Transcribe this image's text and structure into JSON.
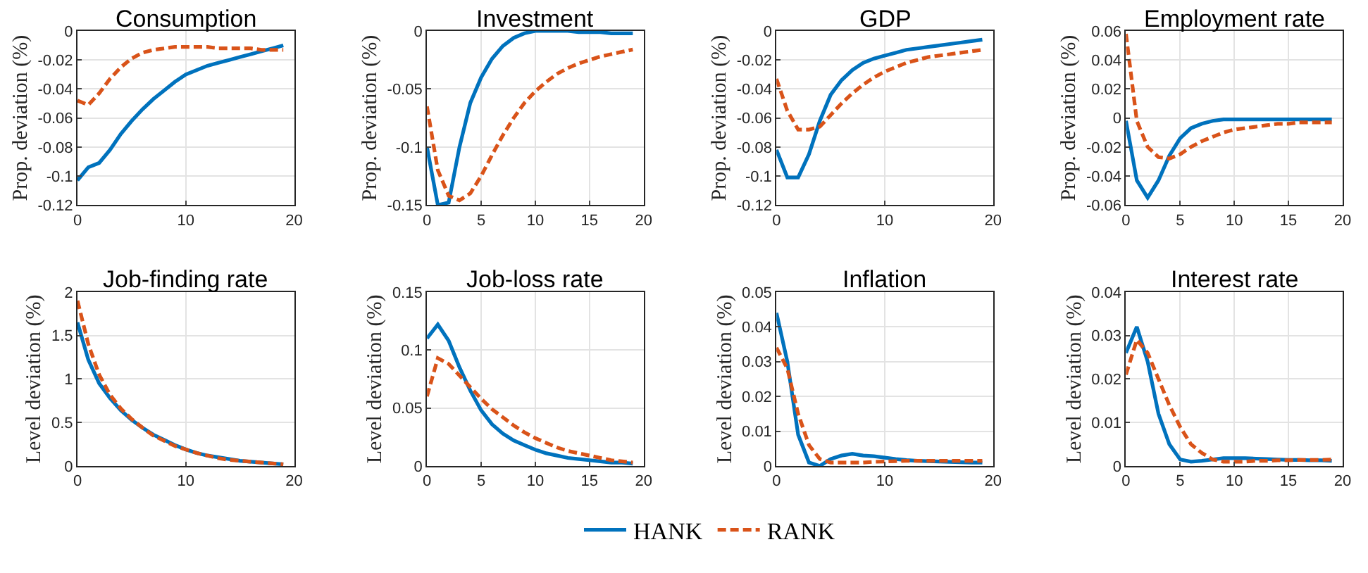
{
  "chart_data": [
    {
      "type": "line",
      "title": "Consumption",
      "ylabel": "Prop. deviation (%)",
      "x": [
        0,
        1,
        2,
        3,
        4,
        5,
        6,
        7,
        8,
        9,
        10,
        11,
        12,
        13,
        14,
        15,
        16,
        17,
        18,
        19
      ],
      "xlim": [
        0,
        20
      ],
      "xticks": [
        0,
        10,
        20
      ],
      "ylim": [
        -0.12,
        0
      ],
      "yticks": [
        -0.12,
        -0.1,
        -0.08,
        -0.06,
        -0.04,
        -0.02,
        0
      ],
      "grid": true,
      "legend": "bottom",
      "marker": "none",
      "series": [
        {
          "name": "HANK",
          "color": "#0072bd",
          "line_style": "solid",
          "values": [
            -0.103,
            -0.094,
            -0.091,
            -0.082,
            -0.071,
            -0.062,
            -0.054,
            -0.047,
            -0.041,
            -0.035,
            -0.03,
            -0.027,
            -0.024,
            -0.022,
            -0.02,
            -0.018,
            -0.016,
            -0.014,
            -0.012,
            -0.01
          ]
        },
        {
          "name": "RANK",
          "color": "#d95319",
          "line_style": "dashed",
          "values": [
            -0.048,
            -0.051,
            -0.043,
            -0.033,
            -0.025,
            -0.019,
            -0.015,
            -0.013,
            -0.012,
            -0.011,
            -0.011,
            -0.011,
            -0.011,
            -0.012,
            -0.012,
            -0.012,
            -0.012,
            -0.013,
            -0.013,
            -0.013
          ]
        }
      ]
    },
    {
      "type": "line",
      "title": "Investment",
      "ylabel": "Prop. deviation (%)",
      "x": [
        0,
        1,
        2,
        3,
        4,
        5,
        6,
        7,
        8,
        9,
        10,
        11,
        12,
        13,
        14,
        15,
        16,
        17,
        18,
        19
      ],
      "xlim": [
        0,
        20
      ],
      "xticks": [
        0,
        5,
        10,
        15,
        20
      ],
      "ylim": [
        -0.15,
        0
      ],
      "yticks": [
        -0.15,
        -0.1,
        -0.05,
        0
      ],
      "grid": true,
      "marker": "none",
      "series": [
        {
          "color": "#0072bd",
          "line_style": "solid",
          "values": [
            -0.1,
            -0.15,
            -0.148,
            -0.1,
            -0.062,
            -0.04,
            -0.024,
            -0.013,
            -0.006,
            -0.002,
            0,
            0,
            0,
            0,
            -0.001,
            -0.001,
            -0.001,
            -0.002,
            -0.002,
            -0.002
          ]
        },
        {
          "color": "#d95319",
          "line_style": "dashed",
          "values": [
            -0.065,
            -0.12,
            -0.142,
            -0.146,
            -0.14,
            -0.125,
            -0.107,
            -0.09,
            -0.075,
            -0.062,
            -0.052,
            -0.044,
            -0.037,
            -0.032,
            -0.028,
            -0.025,
            -0.022,
            -0.02,
            -0.018,
            -0.016
          ]
        }
      ]
    },
    {
      "type": "line",
      "title": "GDP",
      "ylabel": "Prop. deviation (%)",
      "x": [
        0,
        1,
        2,
        3,
        4,
        5,
        6,
        7,
        8,
        9,
        10,
        11,
        12,
        13,
        14,
        15,
        16,
        17,
        18,
        19
      ],
      "xlim": [
        0,
        20
      ],
      "xticks": [
        0,
        10,
        20
      ],
      "ylim": [
        -0.12,
        0
      ],
      "yticks": [
        -0.12,
        -0.1,
        -0.08,
        -0.06,
        -0.04,
        -0.02,
        0
      ],
      "grid": true,
      "marker": "none",
      "series": [
        {
          "color": "#0072bd",
          "line_style": "solid",
          "values": [
            -0.082,
            -0.101,
            -0.101,
            -0.085,
            -0.062,
            -0.044,
            -0.034,
            -0.027,
            -0.022,
            -0.019,
            -0.017,
            -0.015,
            -0.013,
            -0.012,
            -0.011,
            -0.01,
            -0.009,
            -0.008,
            -0.007,
            -0.006
          ]
        },
        {
          "color": "#d95319",
          "line_style": "dashed",
          "values": [
            -0.033,
            -0.055,
            -0.068,
            -0.068,
            -0.066,
            -0.058,
            -0.05,
            -0.043,
            -0.037,
            -0.032,
            -0.028,
            -0.025,
            -0.022,
            -0.02,
            -0.018,
            -0.017,
            -0.016,
            -0.015,
            -0.014,
            -0.013
          ]
        }
      ]
    },
    {
      "type": "line",
      "title": "Employment rate",
      "ylabel": "Prop. deviation (%)",
      "x": [
        0,
        1,
        2,
        3,
        4,
        5,
        6,
        7,
        8,
        9,
        10,
        11,
        12,
        13,
        14,
        15,
        16,
        17,
        18,
        19
      ],
      "xlim": [
        0,
        20
      ],
      "xticks": [
        0,
        5,
        10,
        15,
        20
      ],
      "ylim": [
        -0.06,
        0.06
      ],
      "yticks": [
        -0.06,
        -0.04,
        -0.02,
        0,
        0.02,
        0.04,
        0.06
      ],
      "grid": true,
      "marker": "none",
      "series": [
        {
          "color": "#0072bd",
          "line_style": "solid",
          "values": [
            -0.002,
            -0.043,
            -0.055,
            -0.043,
            -0.026,
            -0.014,
            -0.007,
            -0.004,
            -0.002,
            -0.001,
            -0.001,
            -0.001,
            -0.001,
            -0.001,
            -0.001,
            -0.001,
            -0.001,
            -0.001,
            -0.001,
            -0.001
          ]
        },
        {
          "color": "#d95319",
          "line_style": "dashed",
          "values": [
            0.058,
            -0.002,
            -0.02,
            -0.027,
            -0.028,
            -0.025,
            -0.02,
            -0.016,
            -0.013,
            -0.01,
            -0.008,
            -0.007,
            -0.006,
            -0.005,
            -0.004,
            -0.004,
            -0.003,
            -0.003,
            -0.003,
            -0.003
          ]
        }
      ]
    },
    {
      "type": "line",
      "title": "Job-finding rate",
      "ylabel": "Level deviation (%)",
      "x": [
        0,
        1,
        2,
        3,
        4,
        5,
        6,
        7,
        8,
        9,
        10,
        11,
        12,
        13,
        14,
        15,
        16,
        17,
        18,
        19
      ],
      "xlim": [
        0,
        20
      ],
      "xticks": [
        0,
        10,
        20
      ],
      "ylim": [
        0,
        2
      ],
      "yticks": [
        0,
        0.5,
        1,
        1.5,
        2
      ],
      "grid": true,
      "marker": "none",
      "series": [
        {
          "color": "#0072bd",
          "line_style": "solid",
          "values": [
            1.65,
            1.22,
            0.95,
            0.78,
            0.64,
            0.53,
            0.44,
            0.36,
            0.3,
            0.24,
            0.19,
            0.15,
            0.12,
            0.1,
            0.08,
            0.06,
            0.05,
            0.04,
            0.03,
            0.02
          ]
        },
        {
          "color": "#d95319",
          "line_style": "dashed",
          "values": [
            1.9,
            1.4,
            1.05,
            0.82,
            0.66,
            0.54,
            0.44,
            0.35,
            0.29,
            0.23,
            0.19,
            0.15,
            0.12,
            0.09,
            0.07,
            0.06,
            0.05,
            0.04,
            0.03,
            0.02
          ]
        }
      ]
    },
    {
      "type": "line",
      "title": "Job-loss rate",
      "ylabel": "Level deviation (%)",
      "x": [
        0,
        1,
        2,
        3,
        4,
        5,
        6,
        7,
        8,
        9,
        10,
        11,
        12,
        13,
        14,
        15,
        16,
        17,
        18,
        19
      ],
      "xlim": [
        0,
        20
      ],
      "xticks": [
        0,
        5,
        10,
        15,
        20
      ],
      "ylim": [
        0,
        0.15
      ],
      "yticks": [
        0,
        0.05,
        0.1,
        0.15
      ],
      "grid": true,
      "marker": "none",
      "series": [
        {
          "color": "#0072bd",
          "line_style": "solid",
          "values": [
            0.11,
            0.122,
            0.108,
            0.085,
            0.065,
            0.048,
            0.036,
            0.028,
            0.022,
            0.018,
            0.014,
            0.011,
            0.009,
            0.007,
            0.006,
            0.005,
            0.004,
            0.003,
            0.003,
            0.002
          ]
        },
        {
          "color": "#d95319",
          "line_style": "dashed",
          "values": [
            0.06,
            0.093,
            0.088,
            0.078,
            0.068,
            0.058,
            0.049,
            0.042,
            0.035,
            0.029,
            0.024,
            0.02,
            0.016,
            0.013,
            0.011,
            0.009,
            0.007,
            0.005,
            0.004,
            0.003
          ]
        }
      ]
    },
    {
      "type": "line",
      "title": "Inflation",
      "ylabel": "Level deviation (%)",
      "x": [
        0,
        1,
        2,
        3,
        4,
        5,
        6,
        7,
        8,
        9,
        10,
        11,
        12,
        13,
        14,
        15,
        16,
        17,
        18,
        19
      ],
      "xlim": [
        0,
        20
      ],
      "xticks": [
        0,
        10,
        20
      ],
      "ylim": [
        0,
        0.05
      ],
      "yticks": [
        0,
        0.01,
        0.02,
        0.03,
        0.04,
        0.05
      ],
      "grid": true,
      "marker": "none",
      "series": [
        {
          "color": "#0072bd",
          "line_style": "solid",
          "values": [
            0.044,
            0.03,
            0.009,
            0.001,
            0,
            0.002,
            0.003,
            0.0035,
            0.003,
            0.0028,
            0.0024,
            0.002,
            0.0017,
            0.0015,
            0.0014,
            0.0013,
            0.0012,
            0.0011,
            0.001,
            0.001
          ]
        },
        {
          "color": "#d95319",
          "line_style": "dashed",
          "values": [
            0.034,
            0.028,
            0.015,
            0.006,
            0.002,
            0.001,
            0.001,
            0.001,
            0.001,
            0.0012,
            0.0013,
            0.0014,
            0.0015,
            0.0015,
            0.0015,
            0.0015,
            0.0015,
            0.0015,
            0.0015,
            0.0015
          ]
        }
      ]
    },
    {
      "type": "line",
      "title": "Interest rate",
      "ylabel": "Level deviation (%)",
      "x": [
        0,
        1,
        2,
        3,
        4,
        5,
        6,
        7,
        8,
        9,
        10,
        11,
        12,
        13,
        14,
        15,
        16,
        17,
        18,
        19
      ],
      "xlim": [
        0,
        20
      ],
      "xticks": [
        0,
        5,
        10,
        15,
        20
      ],
      "ylim": [
        0,
        0.04
      ],
      "yticks": [
        0,
        0.01,
        0.02,
        0.03,
        0.04
      ],
      "grid": true,
      "marker": "none",
      "series": [
        {
          "color": "#0072bd",
          "line_style": "solid",
          "values": [
            0.026,
            0.032,
            0.024,
            0.012,
            0.005,
            0.0015,
            0.001,
            0.0012,
            0.0015,
            0.0018,
            0.0018,
            0.0018,
            0.0017,
            0.0016,
            0.0015,
            0.0014,
            0.0014,
            0.0013,
            0.0013,
            0.0012
          ]
        },
        {
          "color": "#d95319",
          "line_style": "dashed",
          "values": [
            0.021,
            0.029,
            0.026,
            0.02,
            0.014,
            0.009,
            0.005,
            0.003,
            0.0015,
            0.001,
            0.001,
            0.001,
            0.0012,
            0.0012,
            0.0013,
            0.0013,
            0.0014,
            0.0014,
            0.0014,
            0.0015
          ]
        }
      ]
    }
  ]
}
